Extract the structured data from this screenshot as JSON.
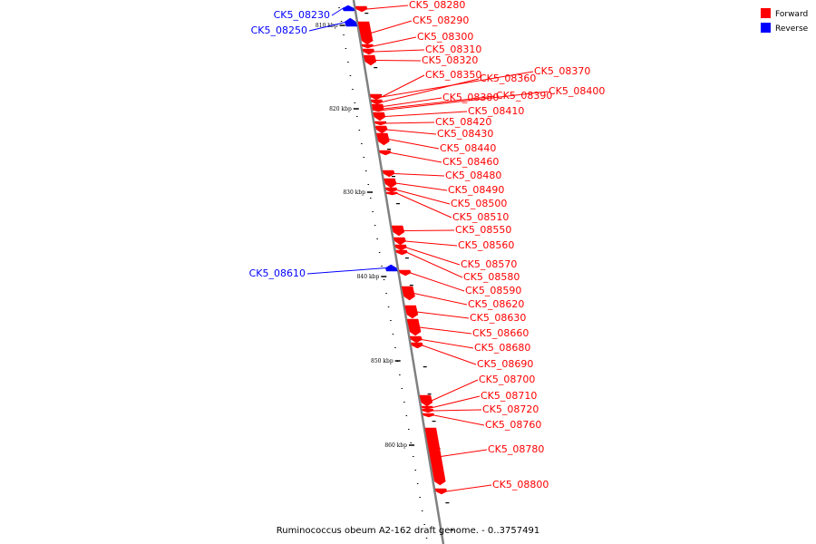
{
  "caption": "Ruminococcus obeum A2-162 draft genome. - 0..3757491",
  "legend": [
    {
      "label": "Forward",
      "color": "#ff0000"
    },
    {
      "label": "Reverse",
      "color": "#0000ff"
    }
  ],
  "colors": {
    "forward": "#ff0000",
    "reverse": "#0000ff",
    "backbone": "#808080"
  },
  "ticks": [
    "810 kbp",
    "820 kbp",
    "830 kbp",
    "840 kbp",
    "850 kbp",
    "860 kbp"
  ],
  "genes": [
    {
      "id": "CK5_08230",
      "strand": "reverse"
    },
    {
      "id": "CK5_08250",
      "strand": "reverse"
    },
    {
      "id": "CK5_08280",
      "strand": "forward"
    },
    {
      "id": "CK5_08290",
      "strand": "forward"
    },
    {
      "id": "CK5_08300",
      "strand": "forward"
    },
    {
      "id": "CK5_08310",
      "strand": "forward"
    },
    {
      "id": "CK5_08320",
      "strand": "forward"
    },
    {
      "id": "CK5_08350",
      "strand": "forward"
    },
    {
      "id": "CK5_08360",
      "strand": "forward"
    },
    {
      "id": "CK5_08370",
      "strand": "forward"
    },
    {
      "id": "CK5_08380",
      "strand": "forward"
    },
    {
      "id": "CK5_08390",
      "strand": "forward"
    },
    {
      "id": "CK5_08400",
      "strand": "forward"
    },
    {
      "id": "CK5_08410",
      "strand": "forward"
    },
    {
      "id": "CK5_08420",
      "strand": "forward"
    },
    {
      "id": "CK5_08430",
      "strand": "forward"
    },
    {
      "id": "CK5_08440",
      "strand": "forward"
    },
    {
      "id": "CK5_08460",
      "strand": "forward"
    },
    {
      "id": "CK5_08480",
      "strand": "forward"
    },
    {
      "id": "CK5_08490",
      "strand": "forward"
    },
    {
      "id": "CK5_08500",
      "strand": "forward"
    },
    {
      "id": "CK5_08510",
      "strand": "forward"
    },
    {
      "id": "CK5_08550",
      "strand": "forward"
    },
    {
      "id": "CK5_08560",
      "strand": "forward"
    },
    {
      "id": "CK5_08570",
      "strand": "forward"
    },
    {
      "id": "CK5_08580",
      "strand": "forward"
    },
    {
      "id": "CK5_08590",
      "strand": "forward"
    },
    {
      "id": "CK5_08610",
      "strand": "reverse"
    },
    {
      "id": "CK5_08620",
      "strand": "forward"
    },
    {
      "id": "CK5_08630",
      "strand": "forward"
    },
    {
      "id": "CK5_08660",
      "strand": "forward"
    },
    {
      "id": "CK5_08680",
      "strand": "forward"
    },
    {
      "id": "CK5_08690",
      "strand": "forward"
    },
    {
      "id": "CK5_08700",
      "strand": "forward"
    },
    {
      "id": "CK5_08710",
      "strand": "forward"
    },
    {
      "id": "CK5_08720",
      "strand": "forward"
    },
    {
      "id": "CK5_08760",
      "strand": "forward"
    },
    {
      "id": "CK5_08780",
      "strand": "forward"
    },
    {
      "id": "CK5_08800",
      "strand": "forward"
    }
  ]
}
